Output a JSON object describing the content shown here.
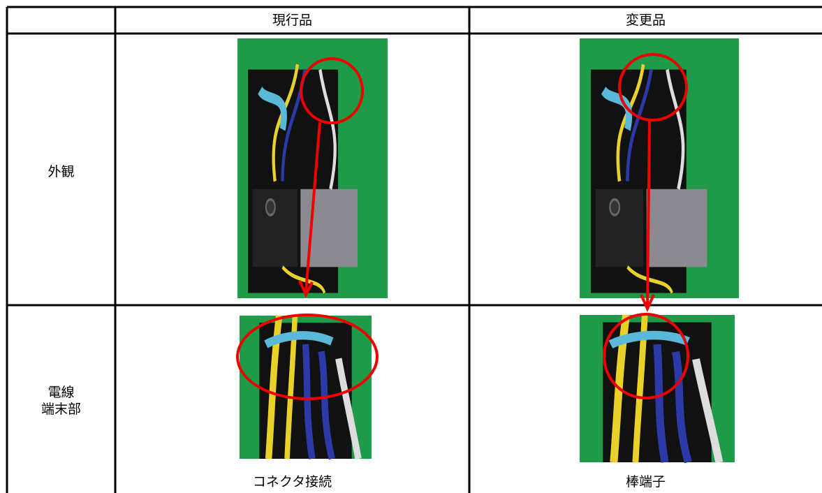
{
  "table": {
    "header": [
      "現行品",
      "変更品"
    ],
    "rows": [
      {
        "label": [
          "外観"
        ]
      },
      {
        "label": [
          "電線",
          "端末部"
        ],
        "captions": [
          "コネクタ接続",
          "棒端子"
        ]
      }
    ]
  }
}
